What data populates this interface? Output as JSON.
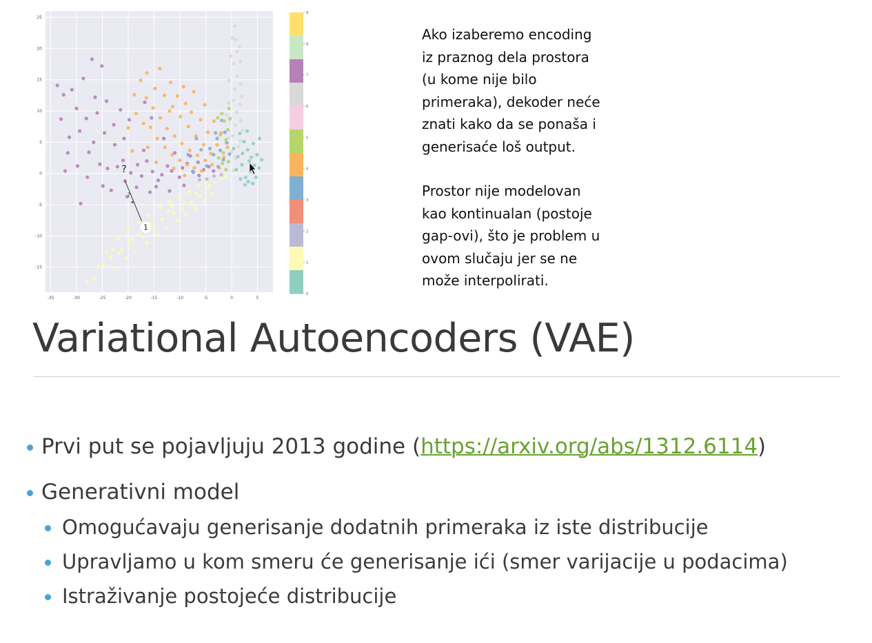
{
  "side_note": {
    "paragraph_1": "Ako izaberemo encoding\niz praznog dela prostora\n(u kome nije bilo\nprimeraka), dekoder neće\nznati kako da se ponaša i\ngenerisaće loš output.",
    "paragraph_2": "Prostor nije modelovan\nkao kontinualan (postoje\ngap-ovi), što je problem u\novom slučaju jer se ne\nmože interpolirati."
  },
  "title": "Variational Autoencoders (VAE)",
  "bullets": {
    "b1_prefix": "Prvi put se pojavljuju 2013 godine (",
    "b1_link": "https://arxiv.org/abs/1312.6114",
    "b1_suffix": ")",
    "b2": "Generativni model",
    "b2_sub": [
      "Omogućavaju generisanje dodatnih primeraka iz iste distribucije",
      "Upravljamo u kom smeru će generisanje ići (smer varijacije u podacima)",
      "Istraživanje postojeće distribucije"
    ]
  },
  "chart_data": {
    "type": "scatter",
    "xlim": [
      -36,
      8
    ],
    "ylim": [
      -19,
      26
    ],
    "x_ticks": [
      -35,
      -30,
      -25,
      -20,
      -15,
      -10,
      -5,
      0,
      5
    ],
    "y_ticks": [
      25,
      20,
      15,
      10,
      5,
      0,
      -5,
      -10,
      -15
    ],
    "colorbar_ticks": [
      9,
      8,
      7,
      6,
      5,
      4,
      3,
      2,
      1,
      0
    ],
    "grid": true,
    "annotations": [
      "?",
      "?",
      "1"
    ],
    "colors": [
      "#8ecfc2",
      "#fdfbb3",
      "#bcb9d8",
      "#f28f79",
      "#7fb0d3",
      "#f9b45d",
      "#b5d66b",
      "#f7cde1",
      "#d9d9d9",
      "#ffe06a",
      "#c9e7c5",
      "#b681b9"
    ],
    "clusters": [
      {
        "label": 1,
        "points": [
          [
            -25.8,
            -14.9
          ],
          [
            -24.8,
            -14.7
          ],
          [
            -23.4,
            -13.5
          ],
          [
            -21.2,
            -12.1
          ],
          [
            -19.3,
            -10.6
          ],
          [
            -17.2,
            -10.1
          ],
          [
            -15.1,
            -8.6
          ],
          [
            -13.4,
            -7.3
          ],
          [
            -11.2,
            -6.4
          ],
          [
            -9.6,
            -5.6
          ],
          [
            -7.8,
            -4.6
          ],
          [
            -6.1,
            -3.6
          ],
          [
            -4.6,
            -2.4
          ],
          [
            -3.2,
            -1.5
          ],
          [
            -2.0,
            -0.8
          ],
          [
            -24.2,
            -12.6
          ],
          [
            -22.0,
            -10.4
          ],
          [
            -20.1,
            -9.0
          ],
          [
            -18.0,
            -7.8
          ],
          [
            -16.0,
            -6.7
          ],
          [
            -13.8,
            -5.4
          ],
          [
            -12.0,
            -4.6
          ],
          [
            -10.0,
            -3.9
          ],
          [
            -8.2,
            -3.0
          ],
          [
            -6.5,
            -2.0
          ],
          [
            -5.0,
            -1.2
          ],
          [
            -22.6,
            -15.1
          ],
          [
            -20.4,
            -13.6
          ],
          [
            -18.6,
            -12.4
          ],
          [
            -16.4,
            -11.1
          ],
          [
            -14.4,
            -9.8
          ],
          [
            -12.6,
            -8.8
          ],
          [
            -10.4,
            -7.6
          ],
          [
            -8.8,
            -6.6
          ],
          [
            -7.0,
            -5.5
          ],
          [
            -5.4,
            -4.4
          ],
          [
            -3.8,
            -3.3
          ],
          [
            -15.7,
            -7.9
          ],
          [
            -12.2,
            -6.1
          ],
          [
            -9.1,
            -4.8
          ],
          [
            -17.9,
            -9.7
          ],
          [
            -19.8,
            -11.2
          ],
          [
            -21.7,
            -12.8
          ],
          [
            -26.5,
            -16.8
          ],
          [
            -27.9,
            -17.3
          ],
          [
            -23.0,
            -12.2
          ],
          [
            -11.6,
            -5.3
          ],
          [
            -6.9,
            -3.2
          ],
          [
            -4.2,
            -1.9
          ],
          [
            -1.2,
            -0.5
          ]
        ]
      },
      {
        "label": 7,
        "points": [
          [
            -30.0,
            10.4
          ],
          [
            -28.1,
            8.8
          ],
          [
            -26.4,
            12.2
          ],
          [
            -24.6,
            6.5
          ],
          [
            -22.6,
            4.6
          ],
          [
            -21.0,
            2.1
          ],
          [
            -19.5,
            0.1
          ],
          [
            -17.4,
            -0.4
          ],
          [
            -15.3,
            0.3
          ],
          [
            -13.5,
            -0.2
          ],
          [
            -11.6,
            0.4
          ],
          [
            -9.5,
            0.9
          ],
          [
            -7.5,
            0.3
          ],
          [
            -5.4,
            0.6
          ],
          [
            -3.5,
            0.4
          ],
          [
            -31.4,
            5.8
          ],
          [
            -29.4,
            6.8
          ],
          [
            -27.6,
            3.4
          ],
          [
            -25.5,
            1.5
          ],
          [
            -24.0,
            0.8
          ],
          [
            -22.1,
            1.1
          ],
          [
            -20.6,
            -1.2
          ],
          [
            -18.2,
            1.4
          ],
          [
            -16.4,
            2.0
          ],
          [
            -14.2,
            -1.1
          ],
          [
            -12.4,
            1.2
          ],
          [
            -10.1,
            -0.6
          ],
          [
            -8.6,
            1.6
          ],
          [
            -6.3,
            -0.3
          ],
          [
            -4.4,
            1.1
          ],
          [
            -32.5,
            12.6
          ],
          [
            -30.9,
            13.4
          ],
          [
            -28.7,
            15.2
          ],
          [
            -26.0,
            9.7
          ],
          [
            -24.2,
            11.6
          ],
          [
            -22.8,
            7.8
          ],
          [
            -20.8,
            5.6
          ],
          [
            -25.1,
            17.2
          ],
          [
            -27.0,
            18.3
          ],
          [
            -33.7,
            14.1
          ],
          [
            -33.0,
            8.7
          ],
          [
            -31.7,
            3.3
          ],
          [
            -29.2,
            -4.8
          ],
          [
            -27.9,
            -0.6
          ],
          [
            -23.3,
            -2.7
          ],
          [
            -18.4,
            -2.2
          ],
          [
            -15.8,
            -3.0
          ],
          [
            -14.6,
            -2.1
          ],
          [
            -12.0,
            -2.8
          ],
          [
            -9.2,
            -1.9
          ],
          [
            -8.0,
            2.8
          ],
          [
            -6.5,
            1.8
          ],
          [
            -11.0,
            3.3
          ],
          [
            -17.0,
            3.7
          ],
          [
            -19.8,
            8.6
          ],
          [
            -21.5,
            10.2
          ],
          [
            -15.5,
            8.9
          ],
          [
            -13.1,
            5.6
          ],
          [
            -16.8,
            11.4
          ],
          [
            -29.8,
            1.2
          ],
          [
            -32.2,
            0.4
          ],
          [
            -24.9,
            -2.0
          ],
          [
            -26.7,
            5.0
          ],
          [
            -20.2,
            -3.7
          ]
        ]
      },
      {
        "label": 4,
        "points": [
          [
            -17.6,
            14.9
          ],
          [
            -16.5,
            12.1
          ],
          [
            -15.2,
            10.5
          ],
          [
            -13.8,
            8.9
          ],
          [
            -12.5,
            7.2
          ],
          [
            -11.0,
            6.0
          ],
          [
            -9.6,
            4.8
          ],
          [
            -8.1,
            3.7
          ],
          [
            -6.6,
            2.9
          ],
          [
            -5.1,
            2.1
          ],
          [
            -3.8,
            1.4
          ],
          [
            -2.4,
            0.9
          ],
          [
            -15.7,
            7.4
          ],
          [
            -14.4,
            5.6
          ],
          [
            -12.9,
            4.2
          ],
          [
            -11.5,
            3.0
          ],
          [
            -10.0,
            2.1
          ],
          [
            -8.6,
            1.4
          ],
          [
            -7.2,
            0.9
          ],
          [
            -5.8,
            0.4
          ],
          [
            -13.0,
            12.5
          ],
          [
            -11.4,
            10.7
          ],
          [
            -9.9,
            9.1
          ],
          [
            -8.4,
            7.5
          ],
          [
            -6.9,
            6.0
          ],
          [
            -5.4,
            4.6
          ],
          [
            -4.0,
            3.2
          ],
          [
            -18.5,
            9.6
          ],
          [
            -17.0,
            8.0
          ],
          [
            -19.2,
            3.6
          ],
          [
            -16.2,
            4.2
          ],
          [
            -12.0,
            10.0
          ],
          [
            -7.8,
            9.8
          ],
          [
            -6.0,
            8.6
          ],
          [
            -4.6,
            6.6
          ],
          [
            -2.8,
            4.6
          ],
          [
            -1.5,
            2.6
          ],
          [
            -14.8,
            13.6
          ],
          [
            -10.5,
            12.4
          ],
          [
            -8.9,
            11.2
          ],
          [
            -18.8,
            12.6
          ],
          [
            -20.0,
            7.3
          ],
          [
            -16.4,
            16.1
          ],
          [
            -13.9,
            16.8
          ],
          [
            -11.8,
            14.6
          ],
          [
            -9.3,
            13.9
          ],
          [
            -7.3,
            13.1
          ],
          [
            -5.2,
            11.0
          ],
          [
            -3.4,
            8.4
          ],
          [
            -2.0,
            6.5
          ],
          [
            -0.8,
            4.2
          ],
          [
            -14.6,
            1.8
          ],
          [
            -11.2,
            0.8
          ],
          [
            -9.1,
            -0.3
          ]
        ]
      },
      {
        "label": 8,
        "points": [
          [
            0.6,
            23.6
          ],
          [
            0.8,
            21.4
          ],
          [
            1.0,
            19.5
          ],
          [
            0.4,
            17.6
          ],
          [
            1.1,
            15.6
          ],
          [
            0.6,
            13.5
          ],
          [
            0.3,
            11.7
          ],
          [
            1.0,
            9.8
          ],
          [
            0.7,
            7.7
          ],
          [
            0.2,
            6.0
          ],
          [
            1.3,
            4.3
          ],
          [
            0.8,
            2.4
          ],
          [
            -0.2,
            18.8
          ],
          [
            1.7,
            17.9
          ],
          [
            -0.5,
            14.9
          ],
          [
            1.8,
            14.3
          ],
          [
            -0.6,
            11.3
          ],
          [
            1.6,
            11.1
          ],
          [
            -0.4,
            8.6
          ],
          [
            1.8,
            8.5
          ],
          [
            -0.7,
            5.7
          ],
          [
            1.7,
            5.2
          ],
          [
            0.0,
            3.5
          ],
          [
            2.1,
            6.9
          ],
          [
            2.0,
            12.3
          ],
          [
            0.2,
            21.7
          ],
          [
            1.5,
            20.3
          ],
          [
            -1.0,
            9.4
          ],
          [
            -1.2,
            4.9
          ],
          [
            0.4,
            0.5
          ]
        ]
      },
      {
        "label": 0,
        "points": [
          [
            1.6,
            6.4
          ],
          [
            2.4,
            5.1
          ],
          [
            3.1,
            3.8
          ],
          [
            3.8,
            2.6
          ],
          [
            4.4,
            1.3
          ],
          [
            3.6,
            0.3
          ],
          [
            2.7,
            -0.6
          ],
          [
            2.0,
            1.4
          ],
          [
            1.2,
            2.7
          ],
          [
            0.9,
            0.6
          ],
          [
            4.2,
            4.8
          ],
          [
            4.9,
            3.0
          ],
          [
            5.3,
            0.9
          ],
          [
            4.7,
            -0.6
          ],
          [
            3.2,
            -1.3
          ],
          [
            1.7,
            -0.9
          ],
          [
            3.0,
            6.8
          ],
          [
            5.4,
            5.6
          ],
          [
            2.1,
            3.2
          ],
          [
            3.4,
            2.0
          ],
          [
            4.1,
            -1.6
          ],
          [
            5.8,
            2.2
          ],
          [
            0.4,
            4.0
          ],
          [
            2.6,
            -1.8
          ]
        ]
      },
      {
        "label": 3,
        "points": [
          [
            -2.8,
            5.6
          ],
          [
            -2.2,
            3.7
          ],
          [
            -1.6,
            2.2
          ],
          [
            -3.5,
            3.0
          ],
          [
            -0.9,
            4.9
          ],
          [
            -4.2,
            4.0
          ],
          [
            -2.6,
            1.1
          ],
          [
            -3.1,
            6.5
          ],
          [
            -1.3,
            6.6
          ],
          [
            -0.4,
            3.1
          ],
          [
            -6.8,
            5.6
          ],
          [
            -5.9,
            3.8
          ],
          [
            -4.8,
            1.2
          ],
          [
            -8.4,
            3.0
          ],
          [
            -7.4,
            0.2
          ],
          [
            -1.9,
            8.5
          ]
        ]
      },
      {
        "label": 6,
        "points": [
          [
            -1.4,
            8.4
          ],
          [
            -0.7,
            7.0
          ],
          [
            -2.2,
            6.2
          ],
          [
            -1.9,
            9.6
          ],
          [
            -0.5,
            10.4
          ],
          [
            -1.1,
            5.4
          ],
          [
            -2.7,
            8.9
          ],
          [
            -0.3,
            8.8
          ]
        ]
      },
      {
        "label": 5,
        "points": [
          [
            -1.8,
            1.6
          ],
          [
            -1.1,
            0.6
          ],
          [
            -2.5,
            2.5
          ],
          [
            -0.6,
            1.9
          ],
          [
            -1.6,
            3.3
          ]
        ]
      },
      {
        "label": 2,
        "points": [
          [
            -3.4,
            -0.4
          ],
          [
            -4.8,
            -0.9
          ],
          [
            -2.0,
            -0.2
          ],
          [
            -6.2,
            -1.0
          ]
        ]
      }
    ]
  }
}
